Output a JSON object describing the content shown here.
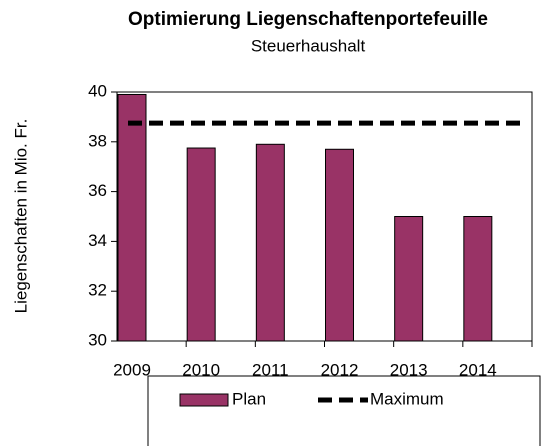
{
  "chart_data": {
    "type": "bar",
    "title": "Optimierung Liegenschaftenportefeuille",
    "subtitle": "Steuerhaushalt",
    "y_label": "Liegenschaften in Mio. Fr.",
    "categories": [
      "2009",
      "2010",
      "2011",
      "2012",
      "2013",
      "2014"
    ],
    "series": [
      {
        "name": "Plan",
        "type": "bar",
        "color": "#993366",
        "values": [
          39.9,
          37.75,
          37.9,
          37.7,
          35.0,
          35.0
        ]
      },
      {
        "name": "Maximum",
        "type": "line",
        "color": "#000000",
        "dashed": true,
        "values": [
          38.75,
          38.75,
          38.75,
          38.75,
          38.75,
          38.75
        ]
      }
    ],
    "ylim": [
      30,
      40
    ],
    "yticks": [
      30,
      32,
      34,
      36,
      38,
      40
    ],
    "grid": false,
    "legend": "bottom"
  }
}
